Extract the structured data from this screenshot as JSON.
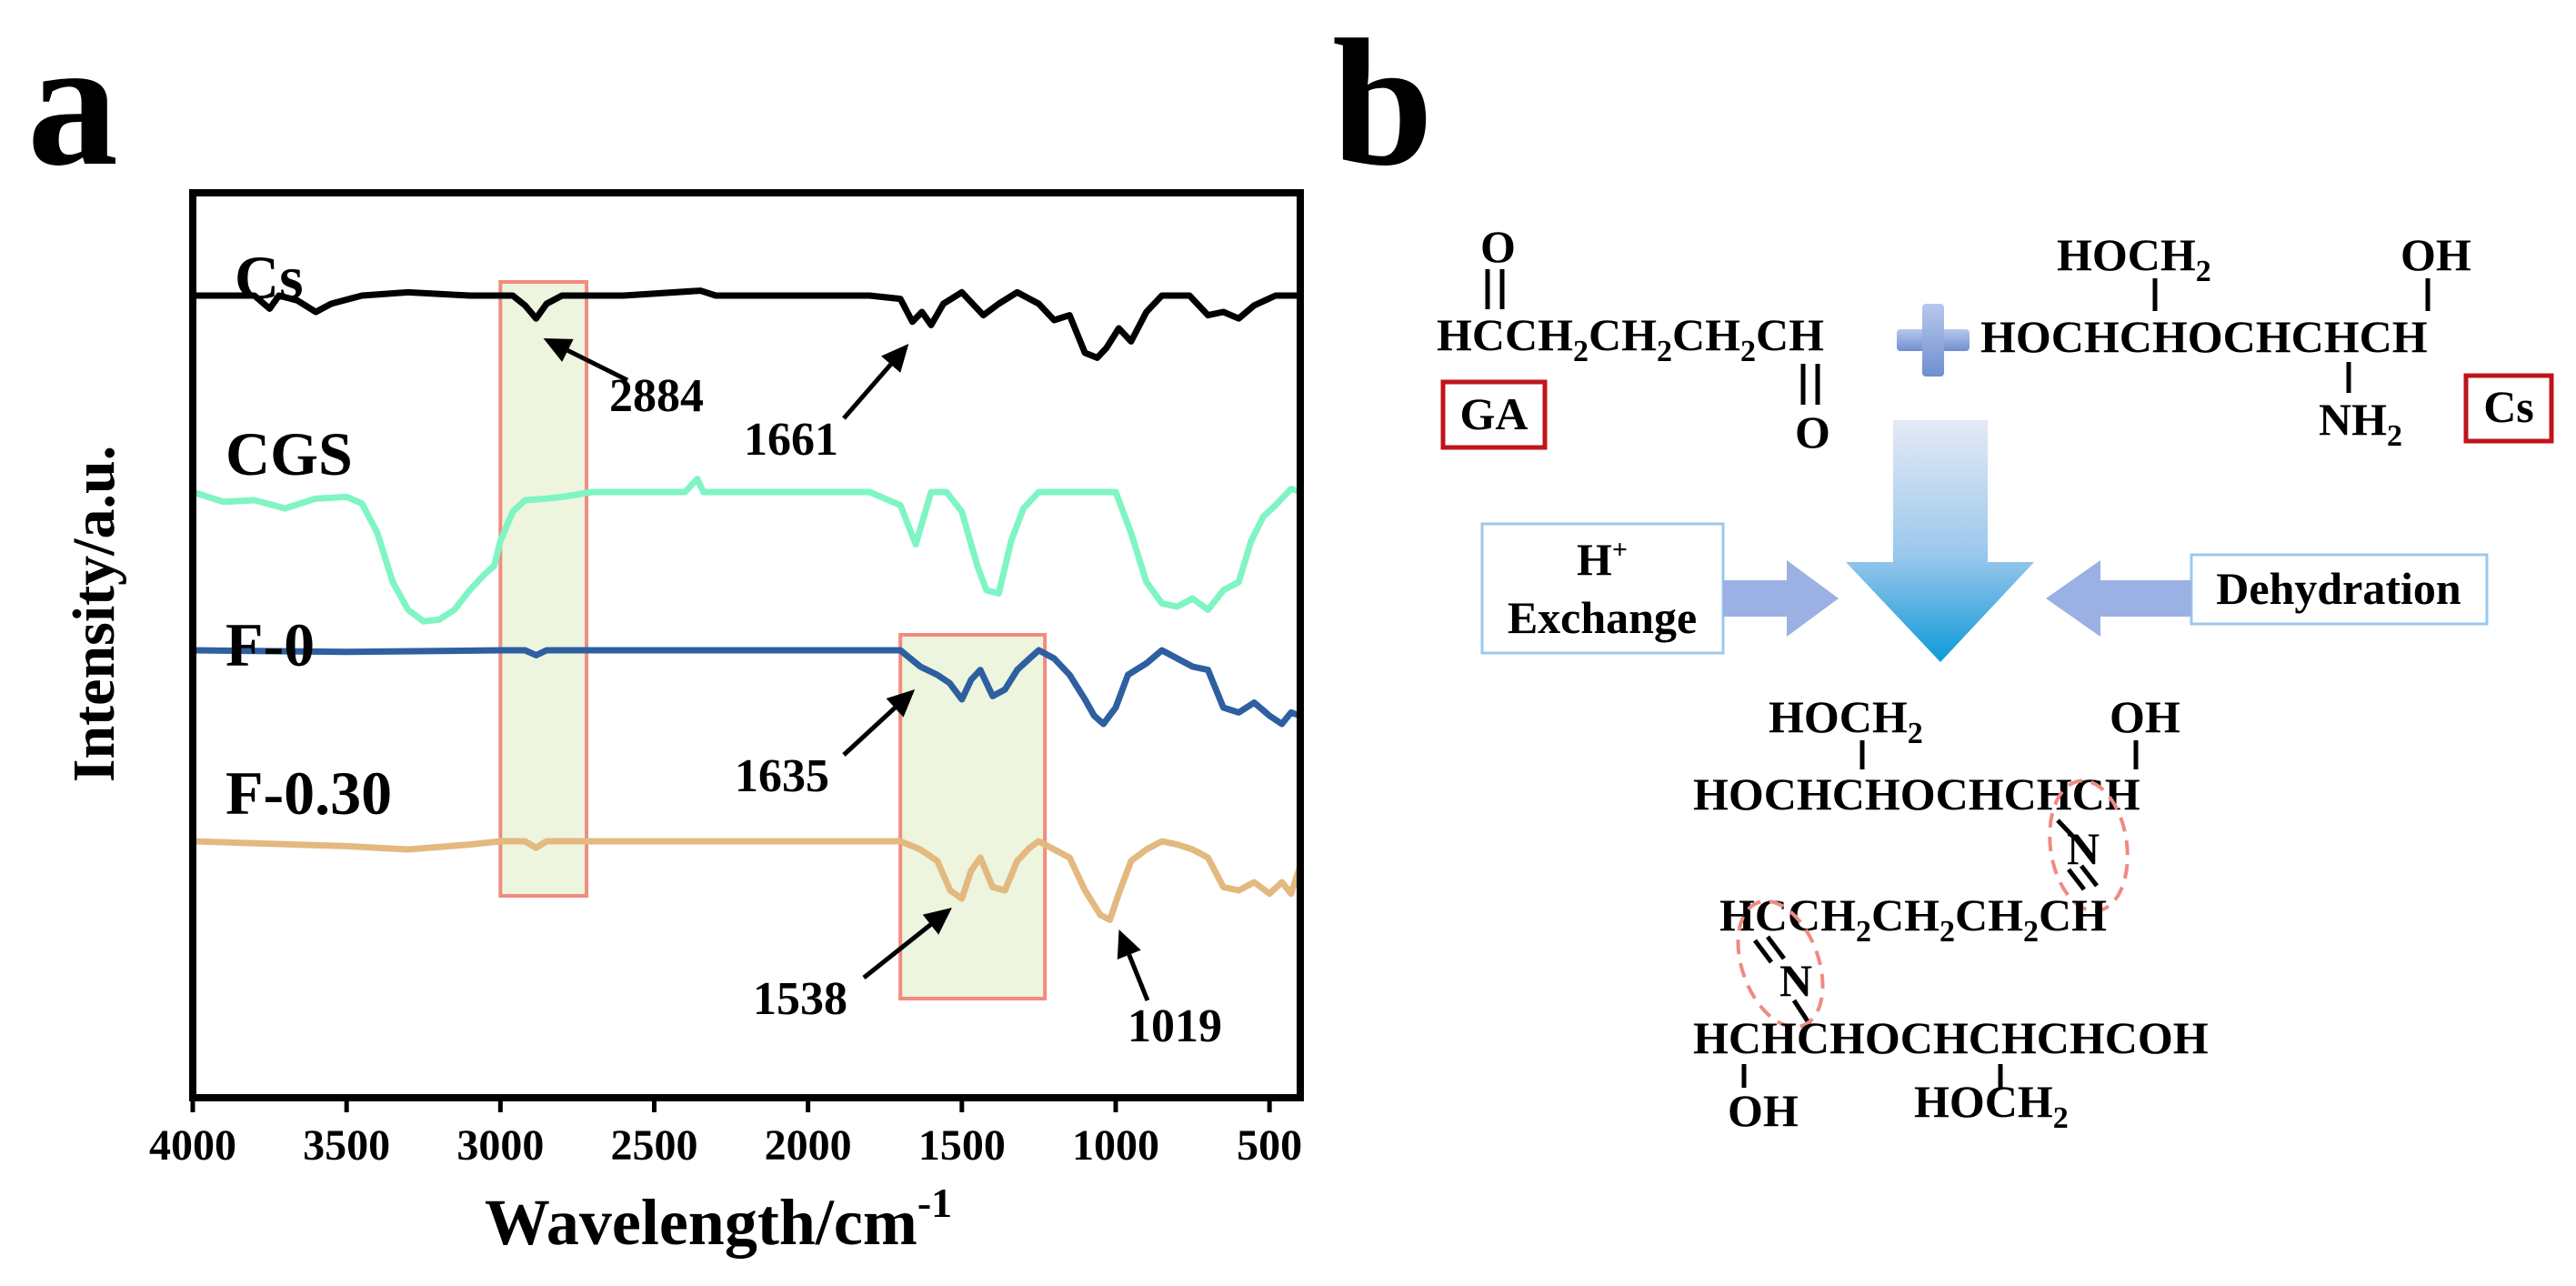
{
  "panel_a": {
    "letter": "a"
  },
  "panel_b": {
    "letter": "b",
    "reactant_ga": {
      "top_o": "O",
      "chain_a": "HCCH",
      "sub1": "2",
      "chain_b": "CH",
      "sub2": "2",
      "chain_c": "CH",
      "sub3": "2",
      "chain_d": "CH",
      "bottom_o": "O",
      "label": "GA"
    },
    "reactant_cs": {
      "hoch2_a": "HOCH",
      "hoch2_sub": "2",
      "oh": "OH",
      "chain": "HOCHCHOCHCHCH",
      "nh2_a": "NH",
      "nh2_sub": "2",
      "label": "Cs"
    },
    "conditions": {
      "left_line1": "H",
      "left_sup": "+",
      "left_line2": "Exchange",
      "right": "Dehydration"
    },
    "product": {
      "hoch2_a": "HOCH",
      "hoch2_sub": "2",
      "oh_top": "OH",
      "row1": "HOCHCHOCHCHCH",
      "n1": "N",
      "row2_a": "HCCH",
      "row2_s1": "2",
      "row2_b": "CH",
      "row2_s2": "2",
      "row2_c": "CH",
      "row2_s3": "2",
      "row2_d": "CH",
      "n2": "N",
      "row3": "HCHCHOCHCHCHCOH",
      "oh_bottom": "OH",
      "hoch2b_a": "HOCH",
      "hoch2b_sub": "2"
    },
    "colors": {
      "label_box": "#c0141c",
      "arrow_light": "#dce3f4",
      "arrow_dark": "#1aa3dc",
      "side_arrow": "#9bb1e3",
      "circle": "#f08a84"
    }
  },
  "chart_data": {
    "type": "line",
    "title": "",
    "xlabel": "Wavelength/cm",
    "xlabel_sup": "-1",
    "ylabel": "Intensity/a.u.",
    "xlim": [
      4000,
      400
    ],
    "xticks": [
      "4000",
      "3500",
      "3000",
      "2500",
      "2000",
      "1500",
      "1000",
      "500"
    ],
    "xtick_values": [
      4000,
      3500,
      3000,
      2500,
      2000,
      1500,
      1000,
      500
    ],
    "offset_note": "stacked spectra; intensity values are relative (arbitrary units, 0 = each curve baseline)",
    "series": [
      {
        "name": "Cs",
        "color": "#000000",
        "offset": 3.0,
        "points": [
          [
            4000,
            0.0
          ],
          [
            3800,
            0.0
          ],
          [
            3750,
            -0.08
          ],
          [
            3720,
            0.0
          ],
          [
            3660,
            -0.03
          ],
          [
            3600,
            -0.1
          ],
          [
            3550,
            -0.05
          ],
          [
            3450,
            0.0
          ],
          [
            3300,
            0.02
          ],
          [
            3100,
            0.0
          ],
          [
            2960,
            0.0
          ],
          [
            2920,
            -0.06
          ],
          [
            2884,
            -0.14
          ],
          [
            2850,
            -0.05
          ],
          [
            2800,
            0.0
          ],
          [
            2600,
            0.0
          ],
          [
            2350,
            0.03
          ],
          [
            2300,
            0.0
          ],
          [
            1800,
            0.0
          ],
          [
            1700,
            -0.02
          ],
          [
            1661,
            -0.16
          ],
          [
            1630,
            -0.1
          ],
          [
            1600,
            -0.18
          ],
          [
            1560,
            -0.05
          ],
          [
            1500,
            0.02
          ],
          [
            1430,
            -0.12
          ],
          [
            1380,
            -0.05
          ],
          [
            1320,
            0.02
          ],
          [
            1250,
            -0.05
          ],
          [
            1200,
            -0.15
          ],
          [
            1150,
            -0.12
          ],
          [
            1100,
            -0.35
          ],
          [
            1060,
            -0.38
          ],
          [
            1030,
            -0.32
          ],
          [
            990,
            -0.2
          ],
          [
            950,
            -0.28
          ],
          [
            900,
            -0.1
          ],
          [
            850,
            0.0
          ],
          [
            760,
            0.0
          ],
          [
            700,
            -0.12
          ],
          [
            650,
            -0.1
          ],
          [
            600,
            -0.14
          ],
          [
            550,
            -0.06
          ],
          [
            480,
            0.0
          ],
          [
            400,
            0.0
          ]
        ]
      },
      {
        "name": "CGS",
        "color": "#7ff5c3",
        "offset": 1.92,
        "points": [
          [
            4000,
            0.0
          ],
          [
            3900,
            -0.06
          ],
          [
            3800,
            -0.05
          ],
          [
            3700,
            -0.1
          ],
          [
            3600,
            -0.04
          ],
          [
            3500,
            -0.03
          ],
          [
            3450,
            -0.07
          ],
          [
            3400,
            -0.25
          ],
          [
            3350,
            -0.55
          ],
          [
            3300,
            -0.72
          ],
          [
            3250,
            -0.79
          ],
          [
            3200,
            -0.78
          ],
          [
            3150,
            -0.72
          ],
          [
            3100,
            -0.6
          ],
          [
            3050,
            -0.5
          ],
          [
            3020,
            -0.45
          ],
          [
            3000,
            -0.3
          ],
          [
            2960,
            -0.12
          ],
          [
            2920,
            -0.05
          ],
          [
            2850,
            -0.04
          ],
          [
            2800,
            -0.03
          ],
          [
            2700,
            0.0
          ],
          [
            2400,
            0.0
          ],
          [
            2360,
            0.08
          ],
          [
            2340,
            0.0
          ],
          [
            1800,
            0.0
          ],
          [
            1700,
            -0.08
          ],
          [
            1650,
            -0.32
          ],
          [
            1600,
            0.0
          ],
          [
            1550,
            0.0
          ],
          [
            1500,
            -0.12
          ],
          [
            1450,
            -0.45
          ],
          [
            1420,
            -0.6
          ],
          [
            1380,
            -0.62
          ],
          [
            1340,
            -0.3
          ],
          [
            1300,
            -0.1
          ],
          [
            1250,
            0.0
          ],
          [
            1100,
            0.0
          ],
          [
            1000,
            0.0
          ],
          [
            950,
            -0.25
          ],
          [
            900,
            -0.55
          ],
          [
            850,
            -0.68
          ],
          [
            800,
            -0.7
          ],
          [
            750,
            -0.65
          ],
          [
            700,
            -0.72
          ],
          [
            650,
            -0.6
          ],
          [
            600,
            -0.55
          ],
          [
            560,
            -0.3
          ],
          [
            520,
            -0.15
          ],
          [
            480,
            -0.08
          ],
          [
            430,
            0.02
          ],
          [
            400,
            0.0
          ]
        ]
      },
      {
        "name": "F-0",
        "color": "#2e5fa0",
        "offset": 1.05,
        "points": [
          [
            4000,
            0.0
          ],
          [
            3500,
            -0.01
          ],
          [
            3000,
            0.0
          ],
          [
            2920,
            0.0
          ],
          [
            2884,
            -0.03
          ],
          [
            2850,
            0.0
          ],
          [
            2000,
            0.0
          ],
          [
            1700,
            0.0
          ],
          [
            1635,
            -0.1
          ],
          [
            1580,
            -0.15
          ],
          [
            1540,
            -0.2
          ],
          [
            1500,
            -0.3
          ],
          [
            1470,
            -0.18
          ],
          [
            1440,
            -0.12
          ],
          [
            1400,
            -0.28
          ],
          [
            1360,
            -0.24
          ],
          [
            1320,
            -0.12
          ],
          [
            1280,
            -0.05
          ],
          [
            1250,
            0.0
          ],
          [
            1200,
            -0.05
          ],
          [
            1150,
            -0.15
          ],
          [
            1100,
            -0.3
          ],
          [
            1070,
            -0.4
          ],
          [
            1040,
            -0.45
          ],
          [
            1000,
            -0.35
          ],
          [
            960,
            -0.15
          ],
          [
            900,
            -0.08
          ],
          [
            850,
            0.0
          ],
          [
            800,
            -0.05
          ],
          [
            750,
            -0.1
          ],
          [
            700,
            -0.12
          ],
          [
            650,
            -0.35
          ],
          [
            600,
            -0.38
          ],
          [
            550,
            -0.32
          ],
          [
            500,
            -0.4
          ],
          [
            460,
            -0.45
          ],
          [
            430,
            -0.38
          ],
          [
            400,
            -0.4
          ]
        ]
      },
      {
        "name": "F-0.30",
        "color": "#e3b97f",
        "offset": 0.0,
        "points": [
          [
            4000,
            0.0
          ],
          [
            3500,
            -0.03
          ],
          [
            3300,
            -0.05
          ],
          [
            3100,
            -0.02
          ],
          [
            3000,
            0.0
          ],
          [
            2920,
            0.0
          ],
          [
            2884,
            -0.04
          ],
          [
            2850,
            0.0
          ],
          [
            2000,
            0.0
          ],
          [
            1700,
            0.0
          ],
          [
            1635,
            -0.05
          ],
          [
            1580,
            -0.12
          ],
          [
            1538,
            -0.3
          ],
          [
            1500,
            -0.35
          ],
          [
            1470,
            -0.18
          ],
          [
            1440,
            -0.1
          ],
          [
            1400,
            -0.28
          ],
          [
            1360,
            -0.3
          ],
          [
            1320,
            -0.12
          ],
          [
            1280,
            -0.04
          ],
          [
            1250,
            0.0
          ],
          [
            1200,
            -0.05
          ],
          [
            1150,
            -0.1
          ],
          [
            1100,
            -0.3
          ],
          [
            1050,
            -0.45
          ],
          [
            1019,
            -0.48
          ],
          [
            990,
            -0.32
          ],
          [
            950,
            -0.12
          ],
          [
            900,
            -0.05
          ],
          [
            850,
            0.0
          ],
          [
            800,
            -0.02
          ],
          [
            750,
            -0.05
          ],
          [
            700,
            -0.1
          ],
          [
            650,
            -0.28
          ],
          [
            600,
            -0.3
          ],
          [
            550,
            -0.25
          ],
          [
            500,
            -0.32
          ],
          [
            460,
            -0.25
          ],
          [
            430,
            -0.32
          ],
          [
            400,
            -0.15
          ]
        ]
      }
    ],
    "highlight_bands": [
      {
        "x_from": 3000,
        "x_to": 2720
      },
      {
        "x_from": 1700,
        "x_to": 1230
      }
    ],
    "annotations": [
      {
        "text": "2884",
        "x": 2884,
        "series": "Cs"
      },
      {
        "text": "1661",
        "x": 1661,
        "series": "Cs"
      },
      {
        "text": "1635",
        "x": 1635,
        "series": "F-0"
      },
      {
        "text": "1538",
        "x": 1538,
        "series": "F-0.30"
      },
      {
        "text": "1019",
        "x": 1019,
        "series": "F-0.30"
      }
    ]
  }
}
